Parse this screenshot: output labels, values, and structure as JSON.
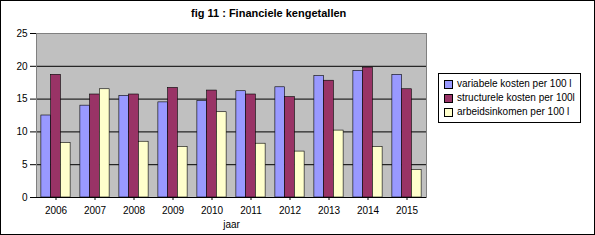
{
  "chart_data": {
    "type": "bar",
    "title": "fig 11 : Financiele kengetallen",
    "x_label": "jaar",
    "categories": [
      "2006",
      "2007",
      "2008",
      "2009",
      "2010",
      "2011",
      "2012",
      "2013",
      "2014",
      "2015"
    ],
    "series": [
      {
        "name": "variabele kosten per 100 l",
        "color": "#9999ff",
        "values": [
          12.5,
          14,
          15.5,
          14.5,
          14.7,
          16.2,
          16.8,
          18.5,
          19.3,
          18.7
        ]
      },
      {
        "name": "structurele kosten per 100l",
        "color": "#993366",
        "values": [
          18.7,
          15.7,
          15.7,
          16.7,
          16.3,
          15.7,
          15.3,
          17.8,
          19.8,
          16.5
        ]
      },
      {
        "name": "arbeidsinkomen per 100 l",
        "color": "#ffffcc",
        "values": [
          8.3,
          16.5,
          8.5,
          7.7,
          13,
          8.2,
          7,
          10.2,
          7.7,
          4.2
        ]
      }
    ],
    "ylim": [
      0,
      25
    ],
    "yticks": [
      0,
      5,
      10,
      15,
      20,
      25
    ],
    "grid": true,
    "legend": "right"
  }
}
